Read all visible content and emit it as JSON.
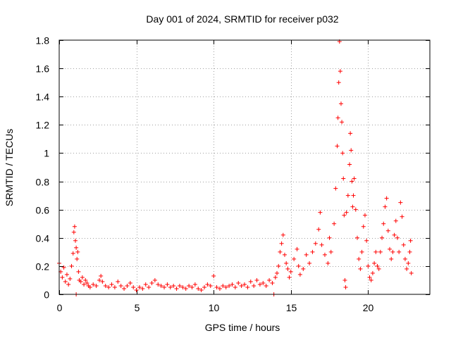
{
  "chart_data": {
    "type": "scatter",
    "title": "Day 001 of 2024, SRMTID for receiver p032",
    "xlabel": "GPS time / hours",
    "ylabel": "SRMTID / TECUs",
    "xlim": [
      0,
      24.0
    ],
    "ylim": [
      0,
      1.8
    ],
    "x_ticks": [
      0,
      5,
      10,
      15,
      20
    ],
    "y_ticks": [
      0,
      0.2,
      0.4,
      0.6,
      0.8,
      1.0,
      1.2,
      1.4,
      1.6,
      1.8
    ],
    "x_tick_labels": [
      "0",
      "5",
      "10",
      "15",
      "20"
    ],
    "y_tick_labels": [
      "0",
      "0.2",
      "0.4",
      "0.6",
      "0.8",
      "1",
      "1.2",
      "1.4",
      "1.6",
      "1.8"
    ],
    "grid": true,
    "marker": "+",
    "color": "#ff0000",
    "series": [
      {
        "name": "SRMTID",
        "points": [
          [
            0.0,
            0.22
          ],
          [
            0.1,
            0.16
          ],
          [
            0.2,
            0.12
          ],
          [
            0.3,
            0.19
          ],
          [
            0.4,
            0.09
          ],
          [
            0.5,
            0.14
          ],
          [
            0.6,
            0.07
          ],
          [
            0.7,
            0.11
          ],
          [
            0.8,
            0.2
          ],
          [
            0.9,
            0.29
          ],
          [
            0.95,
            0.44
          ],
          [
            1.0,
            0.48
          ],
          [
            1.05,
            0.38
          ],
          [
            1.1,
            0.33
          ],
          [
            1.15,
            0.25
          ],
          [
            1.2,
            0.3
          ],
          [
            1.25,
            0.16
          ],
          [
            1.3,
            0.1
          ],
          [
            1.1,
            0.0
          ],
          [
            1.4,
            0.09
          ],
          [
            1.5,
            0.12
          ],
          [
            1.6,
            0.07
          ],
          [
            1.7,
            0.1
          ],
          [
            1.8,
            0.08
          ],
          [
            1.9,
            0.06
          ],
          [
            2.0,
            0.05
          ],
          [
            2.2,
            0.07
          ],
          [
            2.4,
            0.06
          ],
          [
            2.6,
            0.1
          ],
          [
            2.7,
            0.13
          ],
          [
            2.8,
            0.09
          ],
          [
            3.0,
            0.06
          ],
          [
            3.2,
            0.05
          ],
          [
            3.4,
            0.07
          ],
          [
            3.6,
            0.05
          ],
          [
            3.8,
            0.09
          ],
          [
            4.0,
            0.06
          ],
          [
            4.2,
            0.04
          ],
          [
            4.4,
            0.06
          ],
          [
            4.6,
            0.08
          ],
          [
            4.8,
            0.05
          ],
          [
            5.0,
            0.03
          ],
          [
            5.2,
            0.05
          ],
          [
            5.4,
            0.04
          ],
          [
            5.6,
            0.07
          ],
          [
            5.8,
            0.05
          ],
          [
            6.0,
            0.08
          ],
          [
            6.2,
            0.1
          ],
          [
            6.4,
            0.07
          ],
          [
            6.6,
            0.06
          ],
          [
            6.8,
            0.05
          ],
          [
            7.0,
            0.07
          ],
          [
            7.2,
            0.05
          ],
          [
            7.4,
            0.06
          ],
          [
            7.6,
            0.04
          ],
          [
            7.8,
            0.06
          ],
          [
            8.0,
            0.05
          ],
          [
            8.2,
            0.04
          ],
          [
            8.4,
            0.06
          ],
          [
            8.6,
            0.05
          ],
          [
            8.8,
            0.07
          ],
          [
            9.0,
            0.04
          ],
          [
            9.2,
            0.03
          ],
          [
            9.4,
            0.05
          ],
          [
            9.6,
            0.07
          ],
          [
            9.8,
            0.06
          ],
          [
            10.0,
            0.13
          ],
          [
            10.2,
            0.05
          ],
          [
            10.4,
            0.04
          ],
          [
            10.6,
            0.06
          ],
          [
            10.8,
            0.05
          ],
          [
            11.0,
            0.06
          ],
          [
            11.2,
            0.07
          ],
          [
            11.4,
            0.05
          ],
          [
            11.6,
            0.08
          ],
          [
            11.8,
            0.06
          ],
          [
            12.0,
            0.07
          ],
          [
            12.2,
            0.05
          ],
          [
            12.4,
            0.09
          ],
          [
            12.6,
            0.06
          ],
          [
            12.8,
            0.1
          ],
          [
            13.0,
            0.07
          ],
          [
            13.2,
            0.08
          ],
          [
            13.4,
            0.06
          ],
          [
            13.6,
            0.1
          ],
          [
            13.8,
            0.08
          ],
          [
            14.0,
            0.12
          ],
          [
            13.9,
            0.0
          ],
          [
            14.1,
            0.15
          ],
          [
            14.2,
            0.2
          ],
          [
            14.3,
            0.3
          ],
          [
            14.4,
            0.36
          ],
          [
            14.5,
            0.42
          ],
          [
            14.6,
            0.28
          ],
          [
            14.7,
            0.22
          ],
          [
            14.8,
            0.18
          ],
          [
            14.9,
            0.12
          ],
          [
            15.0,
            0.16
          ],
          [
            15.2,
            0.25
          ],
          [
            15.4,
            0.32
          ],
          [
            15.5,
            0.2
          ],
          [
            15.6,
            0.14
          ],
          [
            15.8,
            0.18
          ],
          [
            16.0,
            0.28
          ],
          [
            16.2,
            0.22
          ],
          [
            16.4,
            0.3
          ],
          [
            16.6,
            0.36
          ],
          [
            16.8,
            0.46
          ],
          [
            16.9,
            0.58
          ],
          [
            17.0,
            0.35
          ],
          [
            17.2,
            0.28
          ],
          [
            17.4,
            0.22
          ],
          [
            17.5,
            0.4
          ],
          [
            17.6,
            0.3
          ],
          [
            17.8,
            0.5
          ],
          [
            17.9,
            0.75
          ],
          [
            18.0,
            1.05
          ],
          [
            18.05,
            1.25
          ],
          [
            18.1,
            1.5
          ],
          [
            18.15,
            1.79
          ],
          [
            18.2,
            1.58
          ],
          [
            18.25,
            1.35
          ],
          [
            18.3,
            1.22
          ],
          [
            18.35,
            1.0
          ],
          [
            18.4,
            0.82
          ],
          [
            18.45,
            0.56
          ],
          [
            18.5,
            0.1
          ],
          [
            18.55,
            0.05
          ],
          [
            18.6,
            0.58
          ],
          [
            18.7,
            0.7
          ],
          [
            18.8,
            0.92
          ],
          [
            18.85,
            1.14
          ],
          [
            18.9,
            1.02
          ],
          [
            18.95,
            0.8
          ],
          [
            19.0,
            0.62
          ],
          [
            19.05,
            0.7
          ],
          [
            19.1,
            0.82
          ],
          [
            19.2,
            0.6
          ],
          [
            19.3,
            0.4
          ],
          [
            19.4,
            0.25
          ],
          [
            19.5,
            0.18
          ],
          [
            19.6,
            0.3
          ],
          [
            19.7,
            0.48
          ],
          [
            19.8,
            0.56
          ],
          [
            19.9,
            0.38
          ],
          [
            20.0,
            0.2
          ],
          [
            20.1,
            0.12
          ],
          [
            20.2,
            0.1
          ],
          [
            20.3,
            0.15
          ],
          [
            20.4,
            0.22
          ],
          [
            20.5,
            0.3
          ],
          [
            20.6,
            0.2
          ],
          [
            20.7,
            0.18
          ],
          [
            20.8,
            0.3
          ],
          [
            20.9,
            0.4
          ],
          [
            21.0,
            0.5
          ],
          [
            21.1,
            0.62
          ],
          [
            21.2,
            0.68
          ],
          [
            21.3,
            0.45
          ],
          [
            21.4,
            0.32
          ],
          [
            21.5,
            0.25
          ],
          [
            21.6,
            0.3
          ],
          [
            21.7,
            0.42
          ],
          [
            21.8,
            0.52
          ],
          [
            21.9,
            0.4
          ],
          [
            22.0,
            0.3
          ],
          [
            22.1,
            0.65
          ],
          [
            22.2,
            0.55
          ],
          [
            22.3,
            0.35
          ],
          [
            22.4,
            0.25
          ],
          [
            22.5,
            0.18
          ],
          [
            22.6,
            0.22
          ],
          [
            22.7,
            0.3
          ],
          [
            22.75,
            0.38
          ],
          [
            22.8,
            0.15
          ]
        ]
      }
    ]
  }
}
